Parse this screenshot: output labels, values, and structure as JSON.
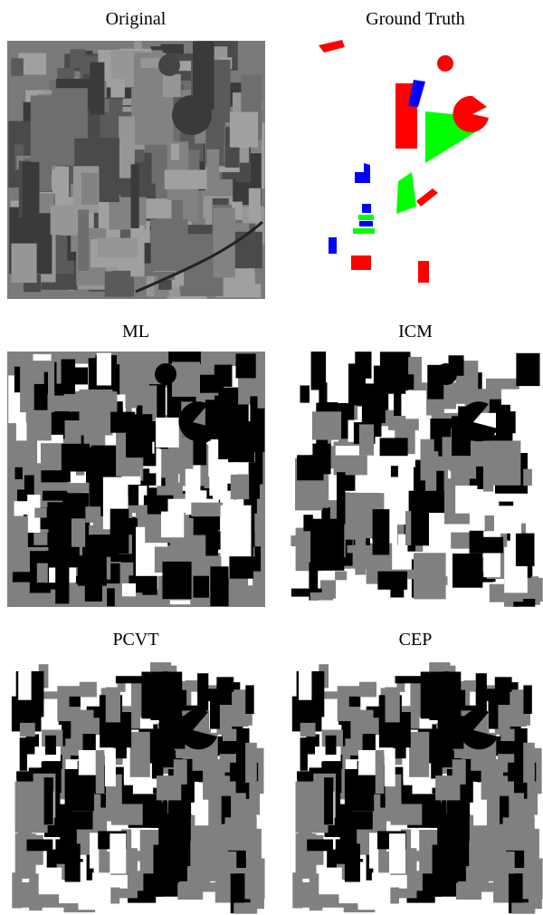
{
  "panels": [
    {
      "title": "Original"
    },
    {
      "title": "Ground Truth"
    },
    {
      "title": "ML"
    },
    {
      "title": "ICM"
    },
    {
      "title": "PCVT"
    },
    {
      "title": "CEP"
    }
  ]
}
